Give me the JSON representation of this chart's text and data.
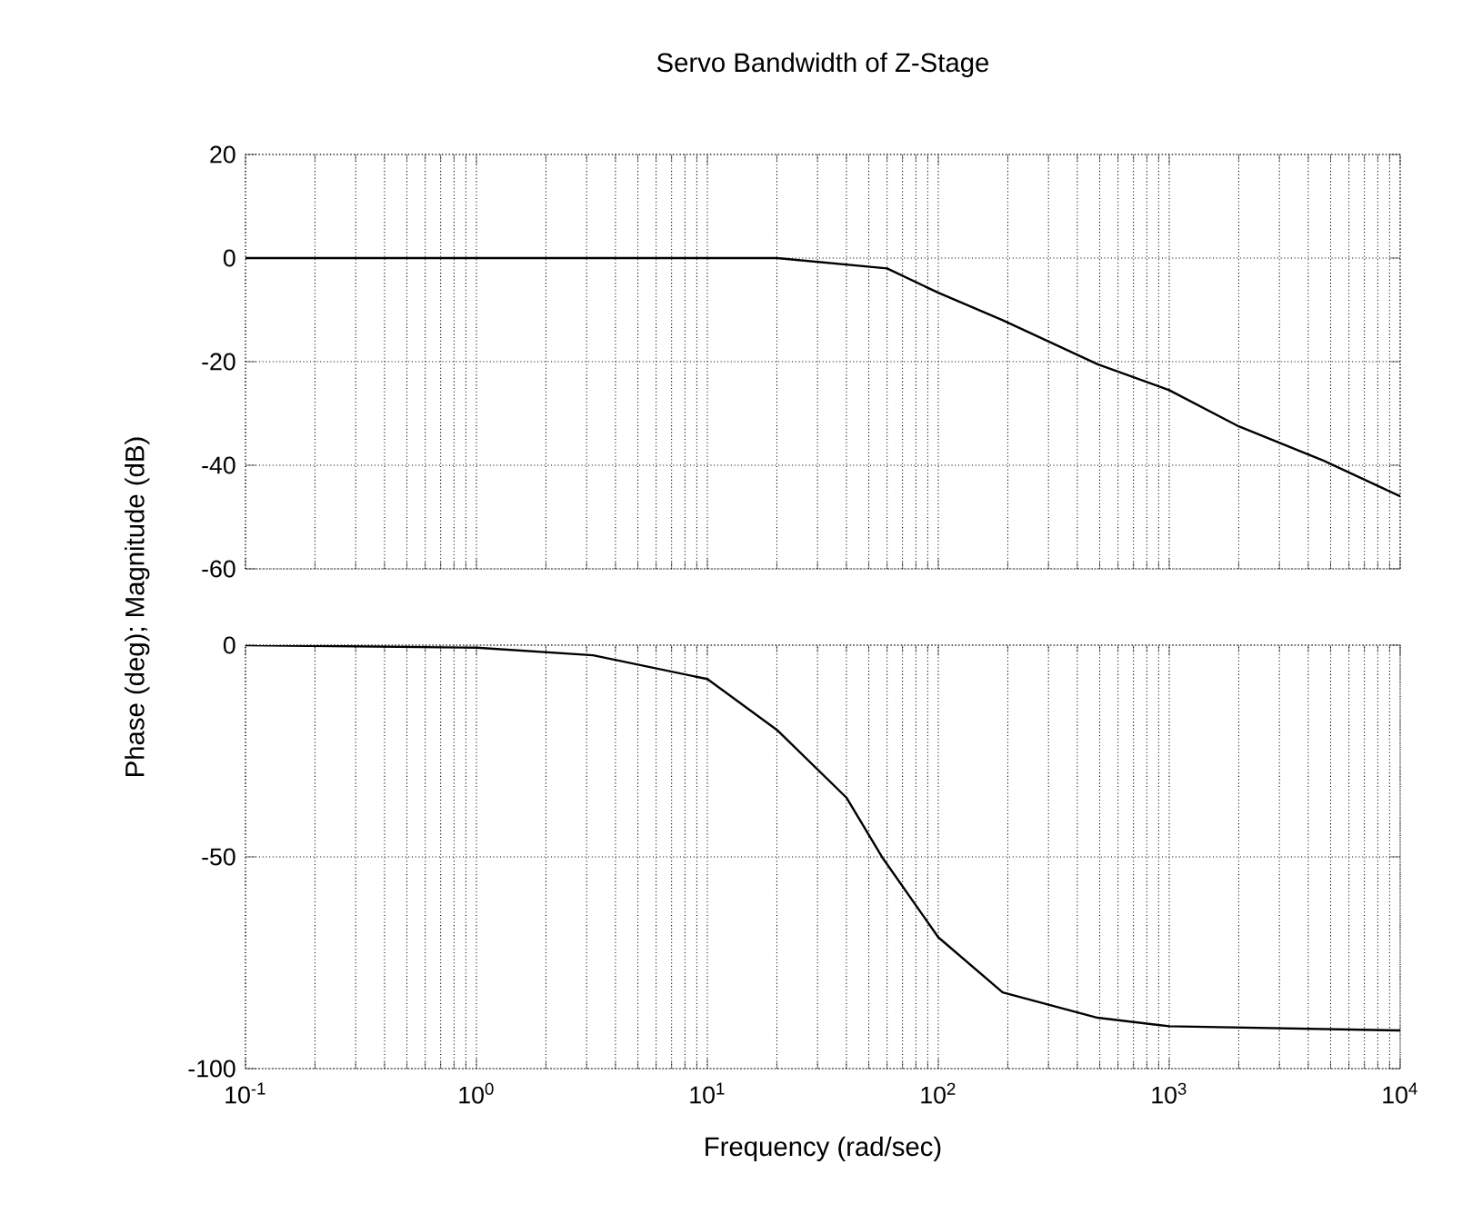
{
  "chart_data": [
    {
      "type": "line",
      "title": "Servo Bandwidth of Z-Stage",
      "log": "x",
      "grid": true,
      "marker": "none",
      "line_style": "solid",
      "tick_labels": "y",
      "x": [
        0.1,
        1,
        10,
        20,
        60,
        100,
        190,
        490,
        1000,
        2000,
        4600,
        10000
      ],
      "series": [
        {
          "color": "#000000",
          "values": [
            0,
            0,
            0,
            0,
            -2,
            -6.7,
            -12,
            -20.5,
            -25.5,
            -32.5,
            -39,
            -46
          ]
        }
      ],
      "xlim": [
        0.1,
        10000
      ],
      "ylim": [
        -60,
        20
      ],
      "xticks": [
        0.1,
        1,
        10,
        100,
        1000,
        10000
      ],
      "yticks": [
        -60,
        -40,
        -20,
        0,
        20
      ]
    },
    {
      "type": "line",
      "xlabel": "Frequency (rad/sec)",
      "ylabel": "Phase (deg); Magnitude (dB)",
      "log": "x",
      "grid": true,
      "marker": "none",
      "line_style": "solid",
      "x": [
        0.1,
        1,
        3.2,
        10,
        20,
        40,
        57,
        100,
        190,
        490,
        1000,
        10000
      ],
      "series": [
        {
          "color": "#000000",
          "values": [
            0,
            -0.6,
            -2.4,
            -8,
            -20,
            -36,
            -50,
            -69,
            -82,
            -88,
            -90,
            -91
          ]
        }
      ],
      "xlim": [
        0.1,
        10000
      ],
      "ylim": [
        -100,
        0
      ],
      "xticks": [
        {
          "value": 0.1,
          "label": "10$^{-1}$"
        },
        {
          "value": 1,
          "label": "10$^{0}$"
        },
        {
          "value": 10,
          "label": "10$^{1}$"
        },
        {
          "value": 100,
          "label": "10$^{2}$"
        },
        {
          "value": 1000,
          "label": "10$^{3}$"
        },
        {
          "value": 10000,
          "label": "10$^{4}$"
        }
      ],
      "yticks": [
        -100,
        -50,
        0
      ]
    }
  ]
}
